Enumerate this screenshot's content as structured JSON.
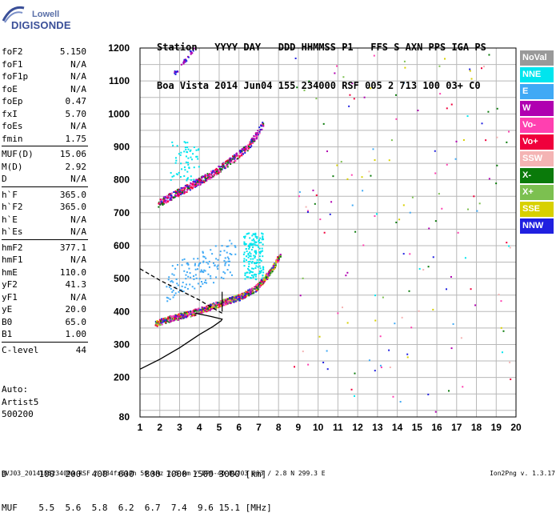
{
  "logo": {
    "top": "Lowell",
    "bottom": "DIGISONDE"
  },
  "header": {
    "line1": "Station   YYYY DAY   DDD HHMMSS P1   FFS S AXN PPS IGA PS",
    "line2": "Boa Vista 2014 Jun04 155 234000 RSF 005 2 713 100 03+ C0"
  },
  "params": [
    {
      "group": [
        {
          "label": "foF2",
          "value": "5.150"
        },
        {
          "label": "foF1",
          "value": "N/A"
        },
        {
          "label": "foF1p",
          "value": "N/A"
        },
        {
          "label": "foE",
          "value": "N/A"
        },
        {
          "label": "foEp",
          "value": "0.47"
        },
        {
          "label": "fxI",
          "value": "5.70"
        },
        {
          "label": "foEs",
          "value": "N/A"
        },
        {
          "label": "fmin",
          "value": "1.75"
        }
      ]
    },
    {
      "group": [
        {
          "label": "MUF(D)",
          "value": "15.06"
        },
        {
          "label": "M(D)",
          "value": "2.92"
        },
        {
          "label": "D",
          "value": "N/A"
        }
      ]
    },
    {
      "group": [
        {
          "label": "h`F",
          "value": "365.0"
        },
        {
          "label": "h`F2",
          "value": "365.0"
        },
        {
          "label": "h`E",
          "value": "N/A"
        },
        {
          "label": "h`Es",
          "value": "N/A"
        }
      ]
    },
    {
      "group": [
        {
          "label": "hmF2",
          "value": "377.1"
        },
        {
          "label": "hmF1",
          "value": "N/A"
        },
        {
          "label": "hmE",
          "value": "110.0"
        },
        {
          "label": "yF2",
          "value": "41.3"
        },
        {
          "label": "yF1",
          "value": "N/A"
        },
        {
          "label": "yE",
          "value": "20.0"
        },
        {
          "label": "B0",
          "value": "65.0"
        },
        {
          "label": "B1",
          "value": "1.00"
        }
      ]
    },
    {
      "group": [
        {
          "label": "C-level",
          "value": "44"
        }
      ]
    }
  ],
  "auto": {
    "line1": "Auto:",
    "line2": "Artist5",
    "line3": "500200"
  },
  "legend": [
    {
      "name": "NoVal",
      "color": "#999999"
    },
    {
      "name": "NNE",
      "color": "#00e5ee"
    },
    {
      "name": "E",
      "color": "#3fa9f5"
    },
    {
      "name": "W",
      "color": "#b000b0"
    },
    {
      "name": "Vo-",
      "color": "#ff40b0"
    },
    {
      "name": "Vo+",
      "color": "#f0003c"
    },
    {
      "name": "SSW",
      "color": "#f4b4b4"
    },
    {
      "name": "X-",
      "color": "#0a7a0a"
    },
    {
      "name": "X+",
      "color": "#7cc050"
    },
    {
      "name": "SSE",
      "color": "#d8d000"
    },
    {
      "name": "NNW",
      "color": "#2020e0"
    }
  ],
  "muf_table": {
    "line1": "D      100  200  400  600  800 1000 1500 3000 [km]",
    "line2": "MUF    5.5  5.6  5.8  6.2  6.7  7.4  9.6 15.1 [MHz]"
  },
  "footer": {
    "left": "BVJ03_2014155234000.RSF / 384fx512h 50 kHz 2.5 km / DPS-4D BVJ03 003 / 2.8 N 299.3 E",
    "right": "Ion2Png v. 1.3.17"
  },
  "chart_data": {
    "type": "scatter",
    "title": "",
    "xlabel": "",
    "ylabel": "",
    "xlim": [
      1,
      20
    ],
    "ylim": [
      80,
      1200
    ],
    "x_ticks": [
      1,
      2,
      3,
      4,
      5,
      6,
      7,
      8,
      9,
      10,
      11,
      12,
      13,
      14,
      15,
      16,
      17,
      18,
      19,
      20
    ],
    "y_ticks": [
      80,
      200,
      300,
      400,
      500,
      600,
      700,
      800,
      900,
      1000,
      1100,
      1200
    ],
    "grid": true,
    "legend_position": "right",
    "traces": [
      {
        "name": "F2 O-trace",
        "points": [
          [
            1.75,
            365
          ],
          [
            2.5,
            380
          ],
          [
            3.5,
            395
          ],
          [
            4.5,
            415
          ],
          [
            5.2,
            430
          ],
          [
            6.0,
            445
          ],
          [
            6.8,
            470
          ],
          [
            7.4,
            510
          ],
          [
            7.8,
            545
          ],
          [
            8.1,
            580
          ]
        ]
      },
      {
        "name": "F2 2-hop",
        "points": [
          [
            1.9,
            730
          ],
          [
            2.5,
            750
          ],
          [
            3.3,
            775
          ],
          [
            4.2,
            805
          ],
          [
            5.0,
            835
          ],
          [
            5.8,
            870
          ],
          [
            6.4,
            900
          ],
          [
            6.9,
            940
          ],
          [
            7.2,
            975
          ]
        ]
      },
      {
        "name": "NNE spread",
        "points": [
          [
            6.3,
            540
          ],
          [
            6.6,
            580
          ],
          [
            6.9,
            560
          ],
          [
            6.7,
            610
          ],
          [
            7.1,
            520
          ],
          [
            6.5,
            620
          ]
        ]
      },
      {
        "name": "E spread",
        "points": [
          [
            2.5,
            440
          ],
          [
            3.5,
            470
          ],
          [
            4.5,
            510
          ],
          [
            5.5,
            545
          ],
          [
            3.0,
            410
          ],
          [
            2.8,
            320
          ]
        ]
      }
    ],
    "profile": {
      "name": "electron density profile",
      "points": [
        [
          1.0,
          225
        ],
        [
          2.0,
          255
        ],
        [
          3.0,
          290
        ],
        [
          4.0,
          330
        ],
        [
          4.7,
          355
        ],
        [
          5.1,
          372
        ],
        [
          5.15,
          377
        ],
        [
          4.6,
          385
        ],
        [
          3.8,
          395
        ]
      ]
    },
    "dashed_profile": {
      "name": "MUF curve",
      "points": [
        [
          1.0,
          530
        ],
        [
          2.0,
          495
        ],
        [
          3.0,
          465
        ],
        [
          4.0,
          435
        ],
        [
          4.7,
          410
        ],
        [
          5.15,
          395
        ]
      ]
    }
  }
}
